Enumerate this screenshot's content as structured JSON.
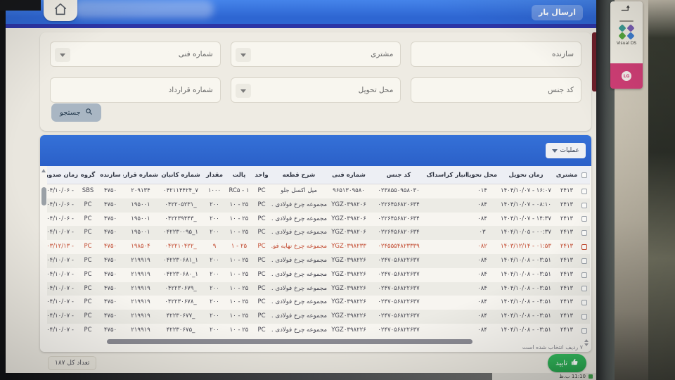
{
  "app": {
    "title": "ارسال بار"
  },
  "filters": {
    "maker": "سازنده",
    "customer": "مشتری",
    "tech_no": "شماره فنی",
    "goods_code": "کد جنس",
    "delivery_place": "محل تحویل",
    "contract_no": "شماره قرارداد",
    "search": "جستجو"
  },
  "toolbar": {
    "operations": "عملیات"
  },
  "table": {
    "columns": [
      "مشتری",
      "زمان تحویل",
      "محل تحویل.",
      "انبار کراسداک...",
      "کد جنس",
      "شماره فنی",
      "شرح قطعه",
      "واحد",
      "پالت",
      "مقدار",
      "شماره کانبان",
      "شماره قرارداد",
      "سازنده",
      "گروه",
      "زمان صدور سفا..."
    ],
    "rows": [
      {
        "red": false,
        "cells": [
          "۲۴۱۳",
          "۱۶:۰۷ - ۱۴۰۴/۱۰/۰۷",
          "۰۱۴",
          "",
          "۰۲۳۸۵۵۰۹۵۸۰۳۰",
          "۹۶۵۱۳۰۹۵۸۰",
          "میل اکسل جلو",
          "PC",
          "RC۵ - ۱",
          "۱۰۰۰",
          "۷_۰۴۲۱۱۴۴۲۴",
          "۲۰۹۱۳۴",
          "۴۷۵۰",
          "SBS",
          "- ۱۴۰۴/۱۰/۰۶"
        ]
      },
      {
        "red": false,
        "cells": [
          "۲۴۱۳",
          "۰۸:۱۰ - ۱۴۰۴/۱۰/۰۷",
          "۰۸۴",
          "",
          "۰۲۲۶۴۵۶۸۲۰۶۳۴",
          "YGZ۰۳۹۸۲۰۶",
          "مجموعه چرخ فولادی ...",
          "PC",
          "۲۵ - ۱۰",
          "۲۰۰",
          "_۰۴۲۲۰۵۲۳۱",
          "۱۹۵۰۰۱",
          "۴۷۵۰",
          "PC",
          "- ۱۴۰۴/۱۰/۰۶"
        ]
      },
      {
        "red": false,
        "cells": [
          "۲۴۱۳",
          "۱۴:۳۷ - ۱۴۰۴/۱۰/۰۷",
          "۰۸۴",
          "",
          "۰۲۲۶۴۵۶۸۲۰۶۳۴",
          "YGZ۰۳۹۸۲۰۶",
          "مجموعه چرخ فولادی ...",
          "PC",
          "۲۵ - ۱۰",
          "۲۰۰",
          "_۰۴۲۲۳۹۴۴۳",
          "۱۹۵۰۰۱",
          "۴۷۵۰",
          "PC",
          "- ۱۴۰۴/۱۰/۰۶"
        ]
      },
      {
        "red": false,
        "cells": [
          "۲۴۱۳",
          "۰۰:۳۷ - ۱۴۰۴/۱۰/۰۵",
          "۰۳",
          "",
          "۰۲۲۶۴۵۶۸۲۰۶۳۴",
          "YGZ۰۳۹۸۲۰۶",
          "مجموعه چرخ فولادی ...",
          "PC",
          "۲۵ - ۱۰",
          "۲۰۰",
          "۱_۰۴۲۲۳۰۰۹۵",
          "۱۹۵۰۰۱",
          "۴۷۵۰",
          "PC",
          "- ۱۴۰۴/۱۰/۰۷"
        ]
      },
      {
        "red": true,
        "cells": [
          "۲۴۱۳",
          "۰۱:۵۳ - ۱۴۰۳/۱۲/۱۴",
          "۰۸۲",
          "",
          "۰۲۴۵۵۵۴۸۲۳۳۳۹",
          "YGZ۰۳۹۸۲۳۳",
          "مجموعه چرخ نهایه فو...",
          "PC",
          "۲۵ - ۱",
          "۹",
          "_۰۴۲۲۱۰۴۲۲",
          "۱۹۸۵۰۴",
          "۴۷۵۰",
          "PC",
          "- ۱۴۰۳/۱۲/۱۳"
        ]
      },
      {
        "red": false,
        "cells": [
          "۲۴۱۳",
          "۰۳:۵۱ - ۱۴۰۴/۱۰/۰۸",
          "۰۸۴",
          "",
          "۰۲۴۷۰۵۶۸۲۲۶۳۷",
          "YGZ۰۳۹۸۲۲۶",
          "مجموعه چرخ فولادی ...",
          "PC",
          "۲۵ - ۱۰",
          "۲۰۰",
          "۱_۰۴۲۲۳۰۶۸۱",
          "۲۱۹۹۱۹",
          "۴۷۵۰",
          "PC",
          "- ۱۴۰۴/۱۰/۰۷"
        ]
      },
      {
        "red": false,
        "cells": [
          "۲۴۱۳",
          "۰۳:۵۱ - ۱۴۰۴/۱۰/۰۸",
          "۰۸۴",
          "",
          "۰۲۴۷۰۵۶۸۲۲۶۳۷",
          "YGZ۰۳۹۸۲۲۶",
          "مجموعه چرخ فولادی ...",
          "PC",
          "۲۵ - ۱۰",
          "۲۰۰",
          "۱_۰۴۲۲۳۰۶۸۰",
          "۲۱۹۹۱۹",
          "۴۷۵۰",
          "PC",
          "- ۱۴۰۴/۱۰/۰۷"
        ]
      },
      {
        "red": false,
        "cells": [
          "۲۴۱۳",
          "۰۳:۵۱ - ۱۴۰۴/۱۰/۰۸",
          "۰۸۴",
          "",
          "۰۲۴۷۰۵۶۸۲۲۶۳۷",
          "YGZ۰۳۹۸۲۲۶",
          "مجموعه چرخ فولادی ...",
          "PC",
          "۲۵ - ۱۰",
          "۲۰۰",
          "_۰۴۲۲۳۰۶۷۹",
          "۲۱۹۹۱۹",
          "۴۷۵۰",
          "PC",
          "- ۱۴۰۴/۱۰/۰۷"
        ]
      },
      {
        "red": false,
        "cells": [
          "۲۴۱۳",
          "۰۴:۵۱ - ۱۴۰۴/۱۰/۰۸",
          "۰۸۴",
          "",
          "۰۲۴۷۰۵۶۸۲۲۶۳۷",
          "YGZ۰۳۹۸۲۲۶",
          "مجموعه چرخ فولادی ...",
          "PC",
          "۲۵ - ۱۰",
          "۲۰۰",
          "_۰۴۲۲۳۰۶۷۸",
          "۲۱۹۹۱۹",
          "۴۷۵۰",
          "PC",
          "- ۱۴۰۴/۱۰/۰۷"
        ]
      },
      {
        "red": false,
        "cells": [
          "۲۴۱۳",
          "۰۳:۵۱ - ۱۴۰۴/۱۰/۰۸",
          "۰۸۴",
          "",
          "۰۲۴۷۰۵۶۸۲۲۶۳۷",
          "YGZ۰۳۹۸۲۲۶",
          "مجموعه چرخ فولادی ...",
          "PC",
          "۲۵ - ۱۰",
          "۲۰۰",
          "_۴۲۲۳۰۶۷۷",
          "۲۱۹۹۱۹",
          "۴۷۵۰",
          "PC",
          "- ۱۴۰۴/۱۰/۰۷"
        ]
      },
      {
        "red": false,
        "cells": [
          "۲۴۱۳",
          "۰۳:۵۱ - ۱۴۰۴/۱۰/۰۸",
          "۰۸۴",
          "",
          "۰۲۴۷۰۵۶۸۲۲۶۳۷",
          "YGZ۰۳۹۸۲۲۶",
          "مجموعه چرخ فولادی ...",
          "PC",
          "۲۵ - ۱۰",
          "۲۰۰",
          "_۴۲۲۳۰۶۷۵",
          "۲۱۹۹۱۹",
          "۴۷۵۰",
          "PC",
          "- ۱۴۰۴/۱۰/۰۷"
        ]
      }
    ]
  },
  "footer": {
    "total": "تعداد کل ۱۸۷",
    "selected": "۷ ردیف انتخاب شده است",
    "confirm": "تایید"
  },
  "stickers": {
    "visual": "Visual DS",
    "lg": "LG"
  },
  "taskbar": {
    "clock": "11:10 ب.ظ"
  },
  "colors": {
    "navbar": "#2e66d2",
    "table_header_bar": "#2b60c8",
    "confirm_green": "#27a04c",
    "red_row": "#c2492f"
  }
}
